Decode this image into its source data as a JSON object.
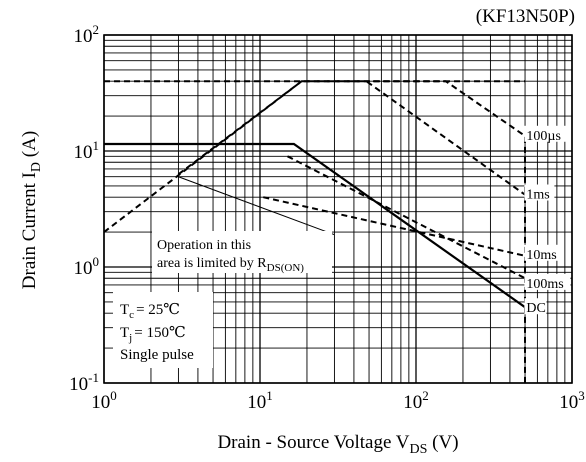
{
  "chart_data": {
    "type": "line",
    "title": "",
    "part_number": "(KF13N50P)",
    "xscale": "log",
    "yscale": "log",
    "xlim": [
      1,
      1000
    ],
    "ylim": [
      0.1,
      100
    ],
    "grid": true,
    "xlabel": {
      "main": "Drain - Source Voltage V",
      "sub": "DS",
      "unit": "  (V)"
    },
    "ylabel": {
      "main": "Drain Current I",
      "sub": "D",
      "unit": " (A)"
    },
    "x_ticks": [
      {
        "value": 1,
        "base": "10",
        "exp": "0"
      },
      {
        "value": 10,
        "base": "10",
        "exp": "1"
      },
      {
        "value": 100,
        "base": "10",
        "exp": "2"
      },
      {
        "value": 1000,
        "base": "10",
        "exp": "3"
      }
    ],
    "y_ticks": [
      {
        "value": 0.1,
        "base": "10",
        "exp": "-1"
      },
      {
        "value": 1,
        "base": "10",
        "exp": "0"
      },
      {
        "value": 10,
        "base": "10",
        "exp": "1"
      },
      {
        "value": 100,
        "base": "10",
        "exp": "2"
      }
    ],
    "series": [
      {
        "name": "100µs",
        "style": "dashed",
        "x": [
          1,
          18.5,
          155,
          500,
          500
        ],
        "y": [
          2,
          40,
          40,
          13.5,
          0.1
        ]
      },
      {
        "name": "1ms",
        "style": "dashed",
        "x": [
          3,
          18.5,
          48,
          500
        ],
        "y": [
          6.3,
          40,
          40,
          4.2
        ]
      },
      {
        "name": "10ms",
        "style": "dashed",
        "x": [
          10.5,
          500
        ],
        "y": [
          4.0,
          1.25
        ]
      },
      {
        "name": "100ms",
        "style": "dashed",
        "x": [
          15,
          500
        ],
        "y": [
          9,
          0.8
        ]
      },
      {
        "name": "DC",
        "style": "solid",
        "x": [
          1,
          16.5,
          500
        ],
        "y": [
          11.5,
          11.5,
          0.45
        ]
      },
      {
        "name": "",
        "style": "dashed",
        "x": [
          1,
          500
        ],
        "y": [
          40,
          40
        ]
      }
    ],
    "series_labels": [
      {
        "text": "100µs",
        "x": 510,
        "y": 13.8
      },
      {
        "text": "1ms",
        "x": 510,
        "y": 4.3
      },
      {
        "text": "10ms",
        "x": 510,
        "y": 1.3
      },
      {
        "text": "100ms",
        "x": 510,
        "y": 0.73
      },
      {
        "text": "DC",
        "x": 510,
        "y": 0.45
      }
    ],
    "annotation": {
      "line1": "Operation in this",
      "line2_main": "area is limited by R",
      "line2_sub": "DS(ON)",
      "arrow_from": [
        30,
        1.9
      ],
      "arrow_to": [
        3.0,
        6.0
      ]
    },
    "conditions": {
      "tc_main": "T",
      "tc_sub": "c",
      "tc_rest": "= 25℃",
      "tj_main": "T",
      "tj_sub": "j",
      "tj_rest": "= 150℃",
      "pulse": "Single pulse"
    }
  }
}
